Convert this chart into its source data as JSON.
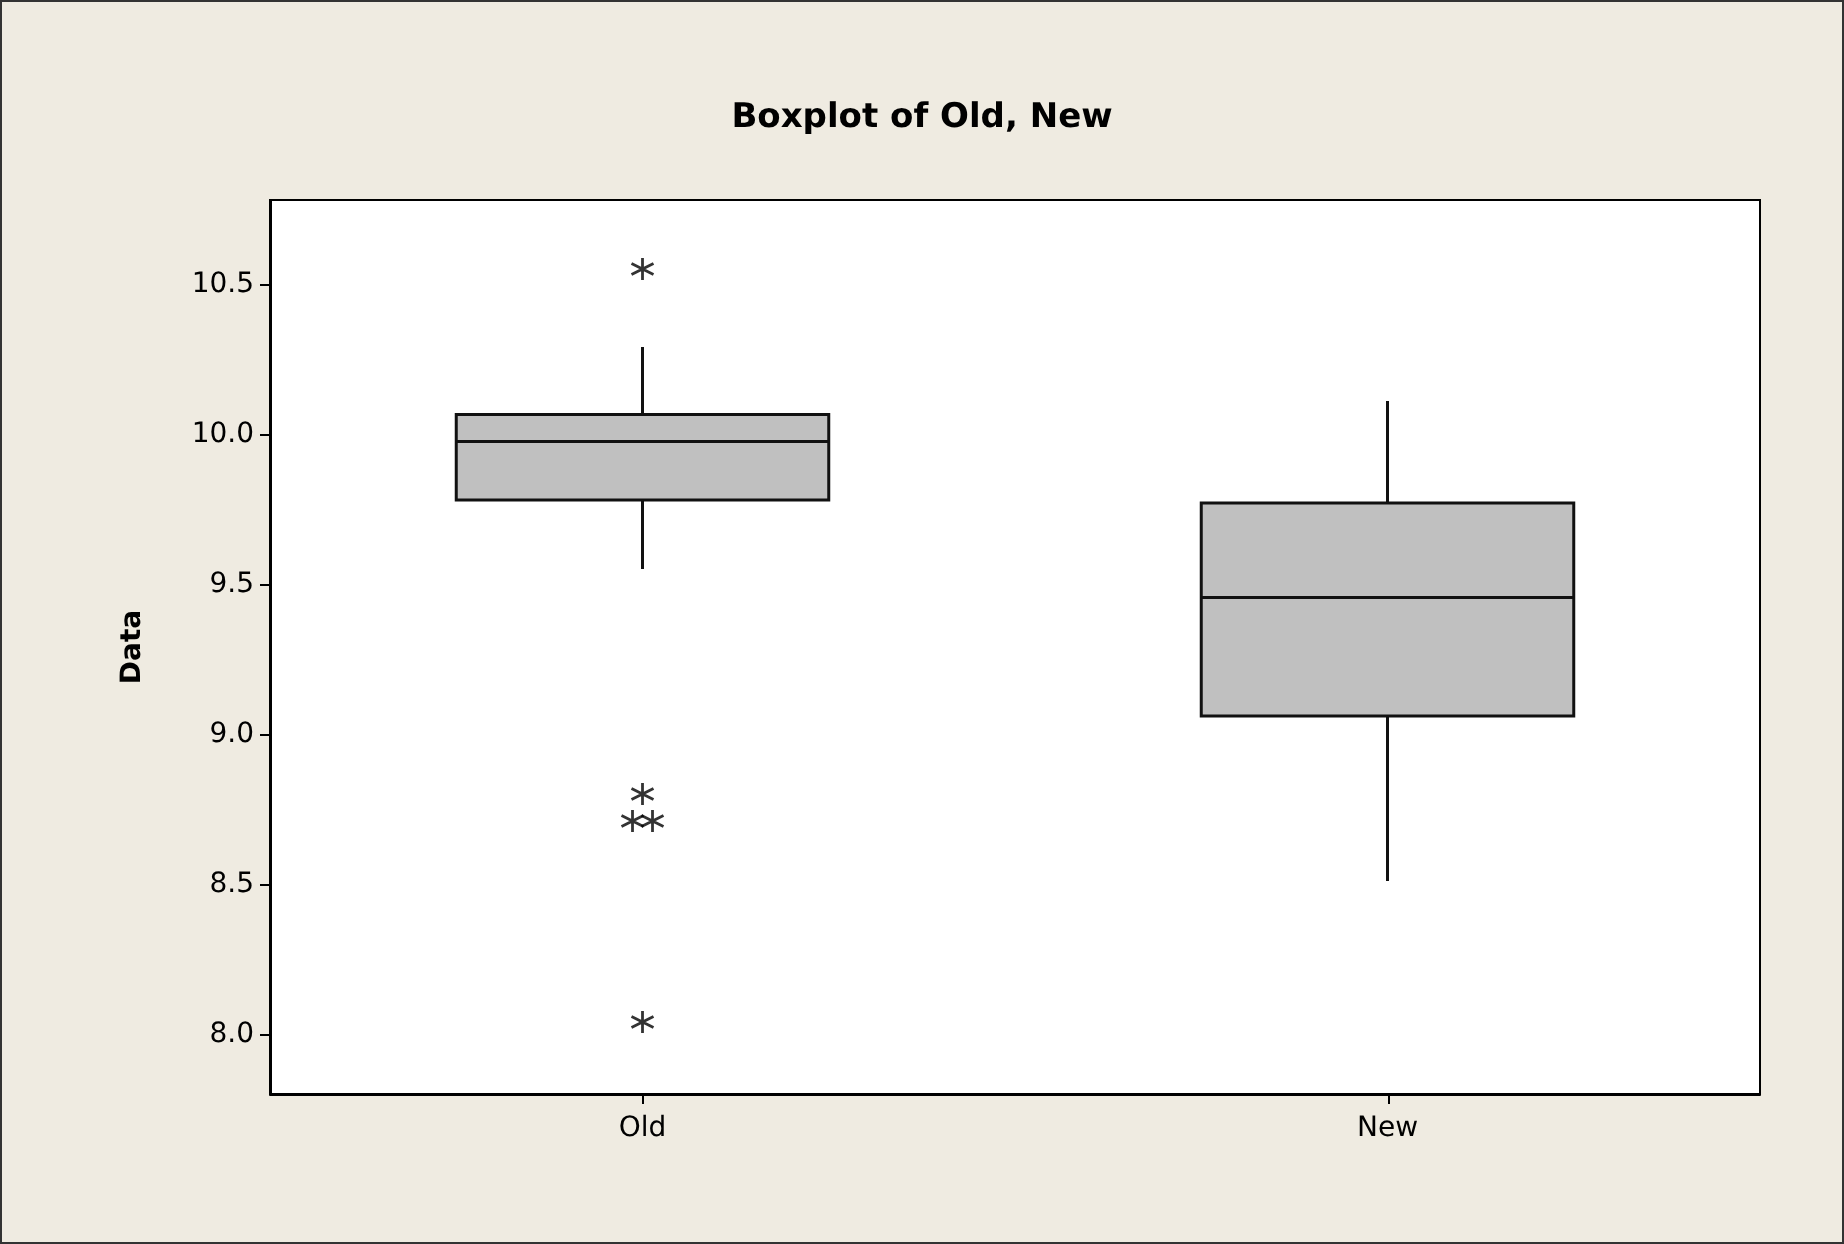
{
  "chart_data": {
    "type": "box",
    "title": "Boxplot of Old, New",
    "ylabel": "Data",
    "categories": [
      "Old",
      "New"
    ],
    "boxes": [
      {
        "low": 9.55,
        "q1": 9.78,
        "median": 9.975,
        "q3": 10.065,
        "high": 10.29,
        "outliers": [
          10.55,
          8.8,
          8.71,
          8.71,
          8.04
        ]
      },
      {
        "low": 8.51,
        "q1": 9.06,
        "median": 9.455,
        "q3": 9.77,
        "high": 10.11
      }
    ],
    "color": "#c0c0c0",
    "ylim": [
      7.8,
      10.78
    ],
    "yticks": [
      {
        "value": 8.0,
        "label": "8.0"
      },
      {
        "value": 8.5,
        "label": "8.5"
      },
      {
        "value": 9.0,
        "label": "9.0"
      },
      {
        "value": 9.5,
        "label": "9.5"
      },
      {
        "value": 10.0,
        "label": "10.0"
      },
      {
        "value": 10.5,
        "label": "10.5"
      }
    ],
    "grid": false
  }
}
